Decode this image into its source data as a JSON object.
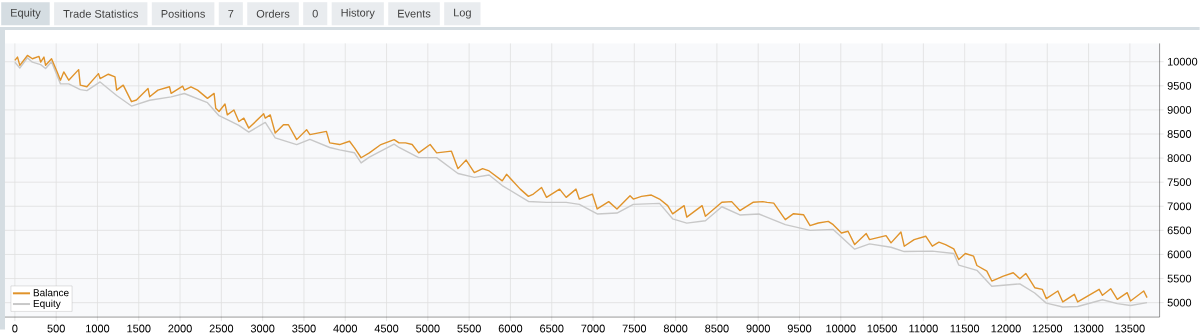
{
  "chart_data": {
    "type": "line",
    "annotations": [
      "Equity",
      "Trade Statistics",
      "Positions",
      "7",
      "Orders",
      "0",
      "History",
      "Events",
      "Log"
    ],
    "xlim": [
      -120,
      13860
    ],
    "ylim": [
      4700,
      10380
    ],
    "xticks": [
      0,
      500,
      1000,
      1500,
      2000,
      2500,
      3000,
      3500,
      4000,
      4500,
      5000,
      5500,
      6000,
      6500,
      7000,
      7500,
      8000,
      8500,
      9000,
      9500,
      10000,
      10500,
      11000,
      11500,
      12000,
      12500,
      13000,
      13500
    ],
    "yticks": [
      5000,
      5500,
      6000,
      6500,
      7000,
      7500,
      8000,
      8500,
      9000,
      9500,
      10000
    ],
    "grid": true,
    "legend": "bottom left",
    "series": [
      {
        "name": "Equity",
        "color": "#c8c8c8",
        "x": [
          0,
          60,
          152,
          212,
          312,
          372,
          444,
          552,
          652,
          792,
          872,
          1032,
          1232,
          1412,
          1632,
          1892,
          2052,
          2332,
          2472,
          2572,
          2712,
          2832,
          3032,
          3152,
          3412,
          3572,
          3812,
          3932,
          4112,
          4192,
          4292,
          4592,
          4651,
          4889,
          5107,
          5365,
          5563,
          5742,
          5901,
          6218,
          6437,
          6675,
          6834,
          7051,
          7290,
          7488,
          7805,
          7964,
          8135,
          8361,
          8560,
          8778,
          9008,
          9328,
          9628,
          9908,
          10168,
          10348,
          10608,
          10768,
          11108,
          11368,
          11428,
          11648,
          11828,
          12168,
          12348,
          12488,
          12688,
          12868,
          13168,
          13348,
          13508,
          13708
        ],
        "values": [
          9990,
          9870,
          10080,
          9990,
          9940,
          9860,
          10000,
          9540,
          9540,
          9420,
          9400,
          9580,
          9300,
          9080,
          9200,
          9270,
          9340,
          9150,
          8880,
          8800,
          8680,
          8540,
          8740,
          8420,
          8280,
          8390,
          8220,
          8170,
          8110,
          7900,
          8020,
          8290,
          8220,
          8010,
          8010,
          7680,
          7600,
          7650,
          7430,
          7100,
          7080,
          7080,
          7040,
          6840,
          6860,
          7040,
          7060,
          6740,
          6650,
          6700,
          6990,
          6820,
          6840,
          6620,
          6500,
          6520,
          6110,
          6220,
          6150,
          6060,
          6070,
          6020,
          5780,
          5670,
          5340,
          5390,
          5200,
          4990,
          4910,
          4920,
          5060,
          4980,
          4940,
          5000
        ]
      },
      {
        "name": "Balance",
        "color": "#e0932a",
        "x": [
          0,
          32,
          60,
          152,
          212,
          292,
          312,
          352,
          372,
          444,
          512,
          552,
          592,
          652,
          772,
          792,
          872,
          1012,
          1032,
          1132,
          1212,
          1232,
          1312,
          1412,
          1472,
          1612,
          1632,
          1732,
          1872,
          1892,
          2032,
          2052,
          2132,
          2212,
          2332,
          2412,
          2432,
          2472,
          2544,
          2572,
          2652,
          2712,
          2772,
          2832,
          3012,
          3032,
          3092,
          3152,
          3252,
          3312,
          3412,
          3532,
          3572,
          3772,
          3812,
          3932,
          4052,
          4112,
          4192,
          4292,
          4432,
          4592,
          4651,
          4730,
          4810,
          4889,
          5028,
          5107,
          5286,
          5365,
          5464,
          5563,
          5663,
          5742,
          5901,
          5953,
          6119,
          6218,
          6278,
          6377,
          6437,
          6595,
          6675,
          6794,
          6834,
          6992,
          7051,
          7190,
          7290,
          7448,
          7488,
          7587,
          7706,
          7805,
          7904,
          7964,
          8103,
          8135,
          8321,
          8361,
          8560,
          8679,
          8778,
          8937,
          9056,
          9108,
          9188,
          9328,
          9428,
          9548,
          9628,
          9728,
          9848,
          9908,
          10008,
          10088,
          10168,
          10308,
          10348,
          10548,
          10608,
          10728,
          10768,
          10888,
          11028,
          11108,
          11188,
          11268,
          11368,
          11428,
          11508,
          11608,
          11648,
          11768,
          11828,
          11968,
          12088,
          12168,
          12240,
          12348,
          12440,
          12488,
          12628,
          12688,
          12828,
          12868,
          13128,
          13168,
          13268,
          13348,
          13468,
          13508,
          13668,
          13708
        ],
        "values": [
          10027,
          10096,
          9925,
          10130,
          10062,
          10110,
          9993,
          10096,
          9925,
          10062,
          9788,
          9616,
          9788,
          9616,
          9836,
          9514,
          9480,
          9753,
          9651,
          9740,
          9685,
          9411,
          9514,
          9171,
          9206,
          9445,
          9274,
          9411,
          9480,
          9343,
          9493,
          9411,
          9480,
          9411,
          9240,
          9343,
          9034,
          8966,
          9123,
          8897,
          8999,
          8760,
          8829,
          8623,
          8918,
          8829,
          8897,
          8520,
          8692,
          8692,
          8383,
          8589,
          8486,
          8555,
          8315,
          8281,
          8349,
          8212,
          8007,
          8109,
          8281,
          8383,
          8315,
          8315,
          8281,
          8109,
          8281,
          8109,
          8144,
          7781,
          7959,
          7698,
          7781,
          7733,
          7527,
          7664,
          7356,
          7205,
          7253,
          7390,
          7185,
          7356,
          7185,
          7356,
          7150,
          7253,
          6945,
          7096,
          6945,
          7219,
          7150,
          7205,
          7233,
          7150,
          7013,
          6842,
          7013,
          6774,
          7013,
          6794,
          7082,
          7096,
          6911,
          7082,
          7096,
          7080,
          7066,
          6722,
          6846,
          6825,
          6598,
          6653,
          6687,
          6618,
          6446,
          6481,
          6205,
          6433,
          6309,
          6391,
          6240,
          6467,
          6171,
          6309,
          6378,
          6171,
          6254,
          6205,
          6116,
          5895,
          6019,
          5964,
          5771,
          5654,
          5448,
          5551,
          5620,
          5496,
          5606,
          5310,
          5276,
          5083,
          5242,
          5014,
          5173,
          5014,
          5276,
          5152,
          5289,
          5069,
          5207,
          5035,
          5242,
          5104
        ]
      }
    ]
  }
}
